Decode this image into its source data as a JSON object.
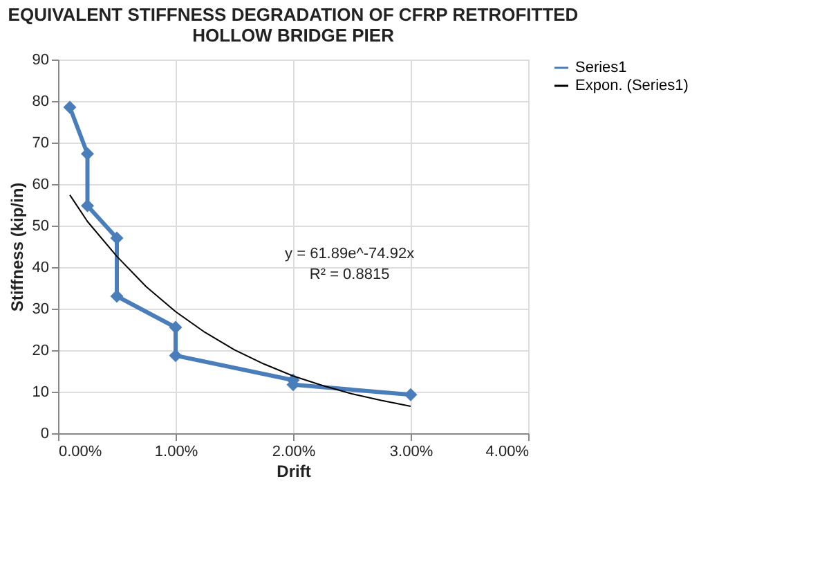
{
  "chart_data": {
    "type": "line",
    "title": [
      "EQUIVALENT STIFFNESS DEGRADATION OF CFRP RETROFITTED",
      "HOLLOW BRIDGE PIER"
    ],
    "xlabel": "Drift",
    "ylabel": "Stiffness (kip/in)",
    "series": [
      {
        "name": "Series1",
        "color": "#4a7ebb",
        "marker": "diamond",
        "x": [
          0.1,
          0.25,
          0.25,
          0.5,
          0.5,
          1.0,
          1.0,
          2.0,
          2.0,
          3.0
        ],
        "values": [
          78.5,
          67.3,
          54.8,
          47,
          33,
          25.5,
          18.7,
          12.8,
          11.7,
          9.3
        ]
      },
      {
        "name": "Expon. (Series1)",
        "color": "#000000",
        "marker": "none",
        "x": [
          0.1,
          0.25,
          0.5,
          0.75,
          1.0,
          1.25,
          1.5,
          1.75,
          2.0,
          2.25,
          2.5,
          2.75,
          3.0
        ],
        "values": [
          57.4,
          51.0,
          42.6,
          35.3,
          29.3,
          24.3,
          20.1,
          16.7,
          13.8,
          11.5,
          9.5,
          7.9,
          6.5
        ]
      }
    ],
    "xlim": [
      0,
      4
    ],
    "xticks": [
      {
        "value": 0,
        "label": "0.00%"
      },
      {
        "value": 1,
        "label": "1.00%"
      },
      {
        "value": 2,
        "label": "2.00%"
      },
      {
        "value": 3,
        "label": "3.00%"
      },
      {
        "value": 4,
        "label": "4.00%"
      }
    ],
    "ylim": [
      0,
      90
    ],
    "yticks": [
      0,
      10,
      20,
      30,
      40,
      50,
      60,
      70,
      80,
      90
    ],
    "grid": true,
    "legend": "right",
    "annotations": [
      "y = 61.89e^-74.92x",
      "R² = 0.8815"
    ]
  }
}
